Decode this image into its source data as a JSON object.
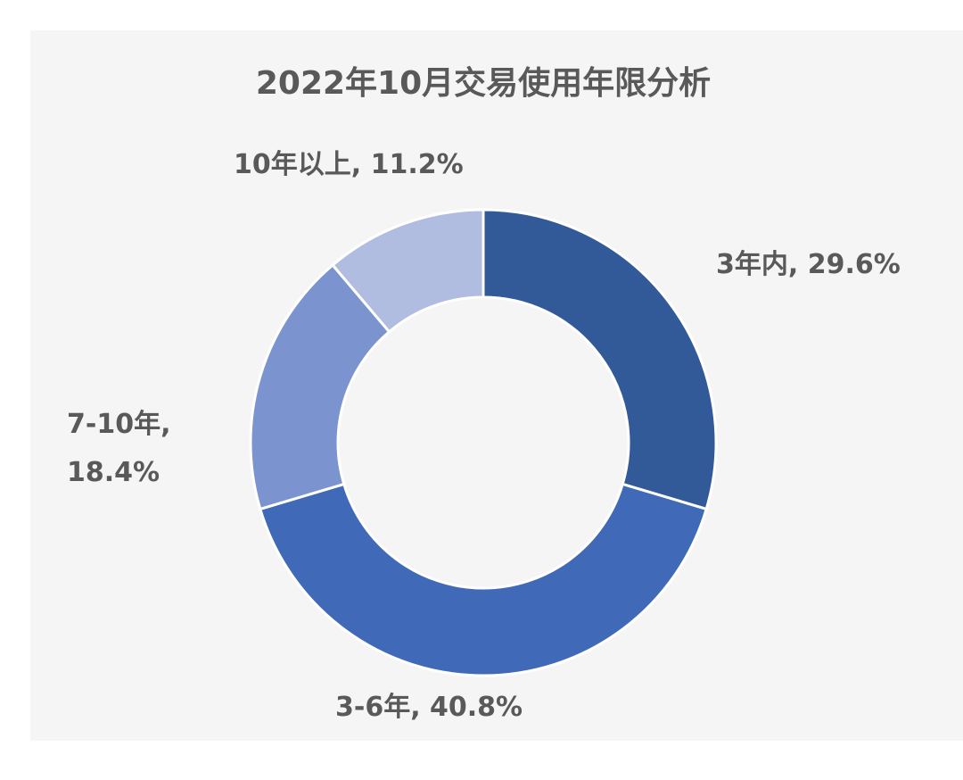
{
  "chart_data": {
    "type": "pie",
    "variant": "donut",
    "title": "2022年10月交易使用年限分析",
    "categories": [
      "3年内",
      "3-6年",
      "7-10年",
      "10年以上"
    ],
    "values": [
      29.6,
      40.8,
      18.4,
      11.2
    ],
    "unit": "%",
    "colors": [
      "#325a99",
      "#4069b8",
      "#7b93cf",
      "#b0bde0"
    ],
    "labels": [
      {
        "category": "3年内",
        "value": "29.6%"
      },
      {
        "category": "3-6年",
        "value": "40.8%"
      },
      {
        "category": "7-10年",
        "value": "18.4%"
      },
      {
        "category": "10年以上",
        "value": "11.2%"
      }
    ],
    "legend": "none",
    "start_angle": "12 o'clock, clockwise"
  }
}
